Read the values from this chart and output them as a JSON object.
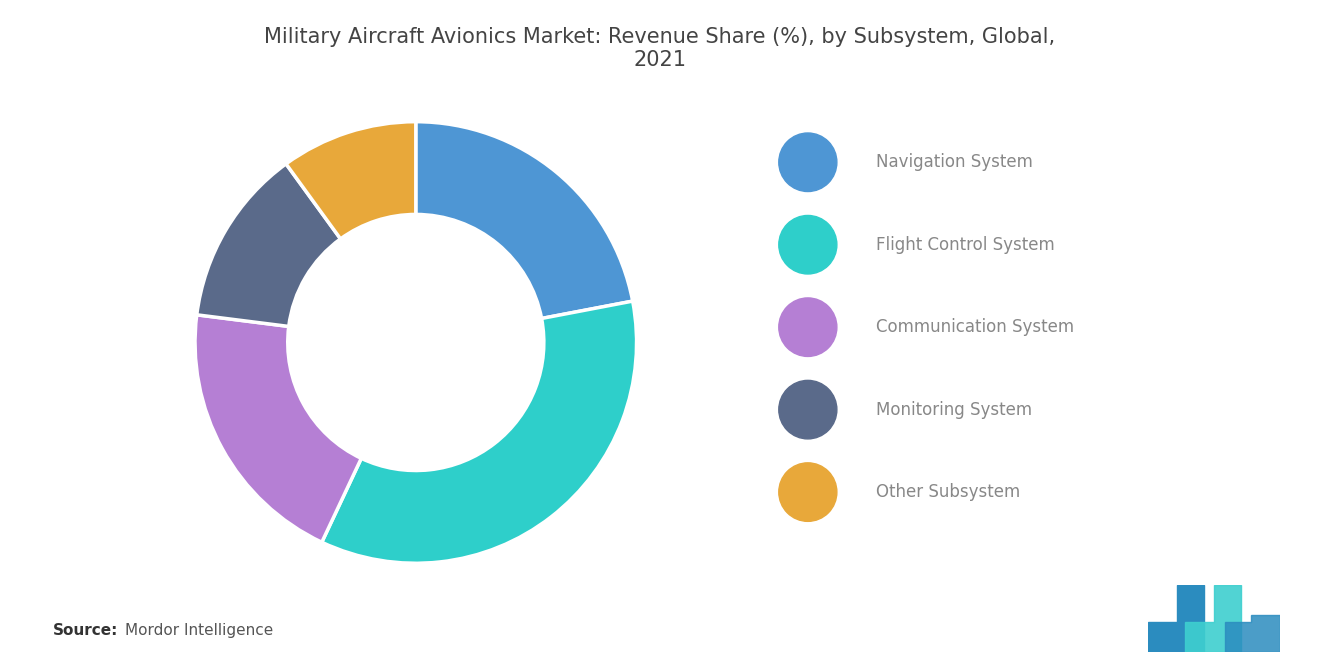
{
  "title": "Military Aircraft Avionics Market: Revenue Share (%), by Subsystem, Global,\n2021",
  "labels": [
    "Navigation System",
    "Flight Control System",
    "Communication System",
    "Monitoring System",
    "Other Subsystem"
  ],
  "values": [
    22,
    35,
    20,
    13,
    10
  ],
  "colors": [
    "#4e96d4",
    "#2ecfca",
    "#b57fd4",
    "#5a6a8a",
    "#e8a83a"
  ],
  "background_color": "#ffffff",
  "source_bold": "Source:",
  "source_text": "Mordor Intelligence",
  "title_fontsize": 15,
  "legend_fontsize": 12,
  "source_fontsize": 11,
  "startangle": 90,
  "logo_color1": "#2b8cbf",
  "logo_color2": "#3ecfcf"
}
